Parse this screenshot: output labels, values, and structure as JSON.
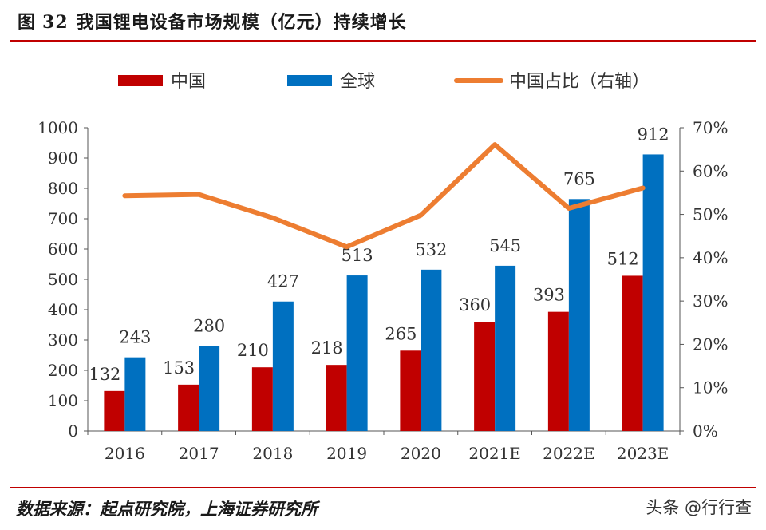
{
  "header": {
    "figure_label": "图",
    "figure_number": "32",
    "title": "我国锂电设备市场规模（亿元）持续增长"
  },
  "footer": {
    "source": "数据来源：起点研究院，上海证券研究所",
    "brand": "头条 @行行查"
  },
  "colors": {
    "china": "#c00000",
    "global": "#0070c0",
    "share": "#ed7d31",
    "rule": "#c00000"
  },
  "chart_data": {
    "type": "bar",
    "categories": [
      "2016",
      "2017",
      "2018",
      "2019",
      "2020",
      "2021E",
      "2022E",
      "2023E"
    ],
    "series": [
      {
        "name": "中国",
        "type": "bar",
        "axis": "left",
        "values": [
          132,
          153,
          210,
          218,
          265,
          360,
          393,
          512
        ]
      },
      {
        "name": "全球",
        "type": "bar",
        "axis": "left",
        "values": [
          243,
          280,
          427,
          513,
          532,
          545,
          765,
          912
        ]
      },
      {
        "name": "中国占比（右轴）",
        "type": "line",
        "axis": "right",
        "values": [
          0.543,
          0.546,
          0.492,
          0.425,
          0.498,
          0.661,
          0.514,
          0.561
        ]
      }
    ],
    "ylim": [
      0,
      1000
    ],
    "yticks": [
      "0",
      "100",
      "200",
      "300",
      "400",
      "500",
      "600",
      "700",
      "800",
      "900",
      "1000"
    ],
    "y2lim": [
      0,
      0.7
    ],
    "y2ticks": [
      "0%",
      "10%",
      "20%",
      "30%",
      "40%",
      "50%",
      "60%",
      "70%"
    ],
    "legend": "top",
    "grid": false
  }
}
